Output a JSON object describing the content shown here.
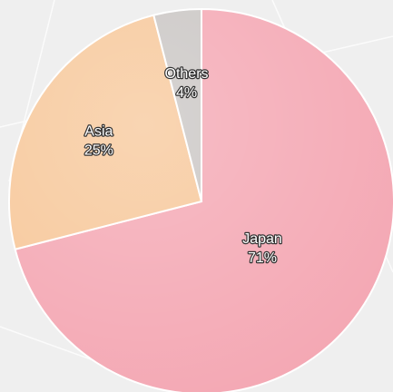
{
  "chart_data": {
    "type": "pie",
    "categories": [
      "Japan",
      "Asia",
      "Others"
    ],
    "values": [
      71,
      25,
      4
    ],
    "value_labels": [
      "71%",
      "25%",
      "4%"
    ],
    "colors": [
      "#f4a7b3",
      "#f7c799",
      "#c9c5c3"
    ],
    "start_angle": 0,
    "direction": "clockwise"
  }
}
